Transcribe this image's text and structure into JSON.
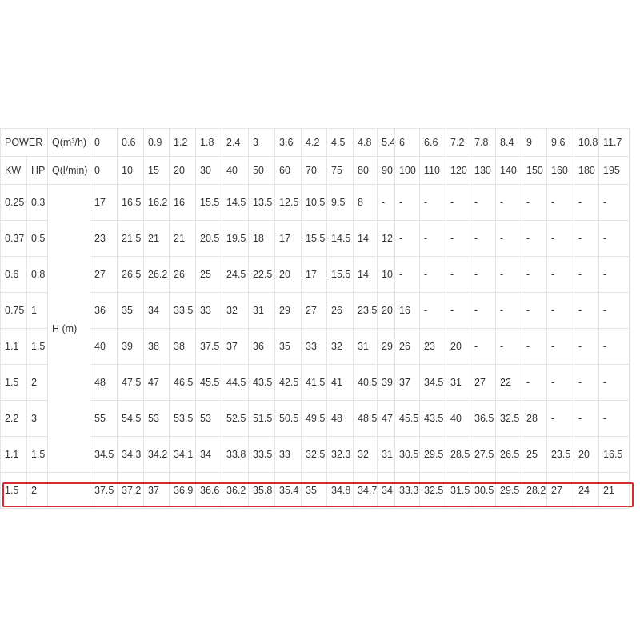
{
  "header_row1": [
    "POWER",
    "Q(m³/h)",
    "0",
    "0.6",
    "0.9",
    "1.2",
    "1.8",
    "2.4",
    "3",
    "3.6",
    "4.2",
    "4.5",
    "4.8",
    "5.4",
    "6",
    "6.6",
    "7.2",
    "7.8",
    "8.4",
    "9",
    "9.6",
    "10.8",
    "11.7"
  ],
  "header_row2": [
    "KW",
    "HP",
    "Q(l/min)",
    "0",
    "10",
    "15",
    "20",
    "30",
    "40",
    "50",
    "60",
    "70",
    "75",
    "80",
    "90",
    "100",
    "110",
    "120",
    "130",
    "140",
    "150",
    "160",
    "180",
    "195"
  ],
  "head_label": "H (m)",
  "rows": [
    {
      "kw": "0.25",
      "hp": "0.3",
      "values": [
        "17",
        "16.5",
        "16.2",
        "16",
        "15.5",
        "14.5",
        "13.5",
        "12.5",
        "10.5",
        "9.5",
        "8",
        "-",
        "-",
        "-",
        "-",
        "-",
        "-",
        "-",
        "-",
        "-",
        "-"
      ]
    },
    {
      "kw": "0.37",
      "hp": "0.5",
      "values": [
        "23",
        "21.5",
        "21",
        "21",
        "20.5",
        "19.5",
        "18",
        "17",
        "15.5",
        "14.5",
        "14",
        "12",
        "-",
        "-",
        "-",
        "-",
        "-",
        "-",
        "-",
        "-",
        "-"
      ]
    },
    {
      "kw": "0.6",
      "hp": "0.8",
      "values": [
        "27",
        "26.5",
        "26.2",
        "26",
        "25",
        "24.5",
        "22.5",
        "20",
        "17",
        "15.5",
        "14",
        "10",
        "-",
        "-",
        "-",
        "-",
        "-",
        "-",
        "-",
        "-",
        "-"
      ]
    },
    {
      "kw": "0.75",
      "hp": "1",
      "values": [
        "36",
        "35",
        "34",
        "33.5",
        "33",
        "32",
        "31",
        "29",
        "27",
        "26",
        "23.5",
        "20",
        "16",
        "-",
        "-",
        "-",
        "-",
        "-",
        "-",
        "-",
        "-"
      ]
    },
    {
      "kw": "1.1",
      "hp": "1.5",
      "values": [
        "40",
        "39",
        "38",
        "38",
        "37.5",
        "37",
        "36",
        "35",
        "33",
        "32",
        "31",
        "29",
        "26",
        "23",
        "20",
        "-",
        "-",
        "-",
        "-",
        "-",
        "-"
      ]
    },
    {
      "kw": "1.5",
      "hp": "2",
      "values": [
        "48",
        "47.5",
        "47",
        "46.5",
        "45.5",
        "44.5",
        "43.5",
        "42.5",
        "41.5",
        "41",
        "40.5",
        "39",
        "37",
        "34.5",
        "31",
        "27",
        "22",
        "-",
        "-",
        "-",
        "-"
      ]
    },
    {
      "kw": "2.2",
      "hp": "3",
      "values": [
        "55",
        "54.5",
        "53",
        "53.5",
        "53",
        "52.5",
        "51.5",
        "50.5",
        "49.5",
        "48",
        "48.5",
        "47",
        "45.5",
        "43.5",
        "40",
        "36.5",
        "32.5",
        "28",
        "-",
        "-",
        "-"
      ]
    },
    {
      "kw": "1.1",
      "hp": "1.5",
      "values": [
        "34.5",
        "34.3",
        "34.2",
        "34.1",
        "34",
        "33.8",
        "33.5",
        "33",
        "32.5",
        "32.3",
        "32",
        "31",
        "30.5",
        "29.5",
        "28.5",
        "27.5",
        "26.5",
        "25",
        "23.5",
        "20",
        "16.5"
      ]
    },
    {
      "kw": "1.5",
      "hp": "2",
      "values": [
        "37.5",
        "37.2",
        "37",
        "36.9",
        "36.6",
        "36.2",
        "35.8",
        "35.4",
        "35",
        "34.8",
        "34.7",
        "34",
        "33.3",
        "32.5",
        "31.5",
        "30.5",
        "29.5",
        "28.2",
        "27",
        "24",
        "21"
      ]
    }
  ],
  "highlight": {
    "row_index": 8,
    "color": "#d42c2c"
  },
  "colors": {
    "border": "#e4e4e4",
    "text": "#333333",
    "background": "#ffffff"
  }
}
